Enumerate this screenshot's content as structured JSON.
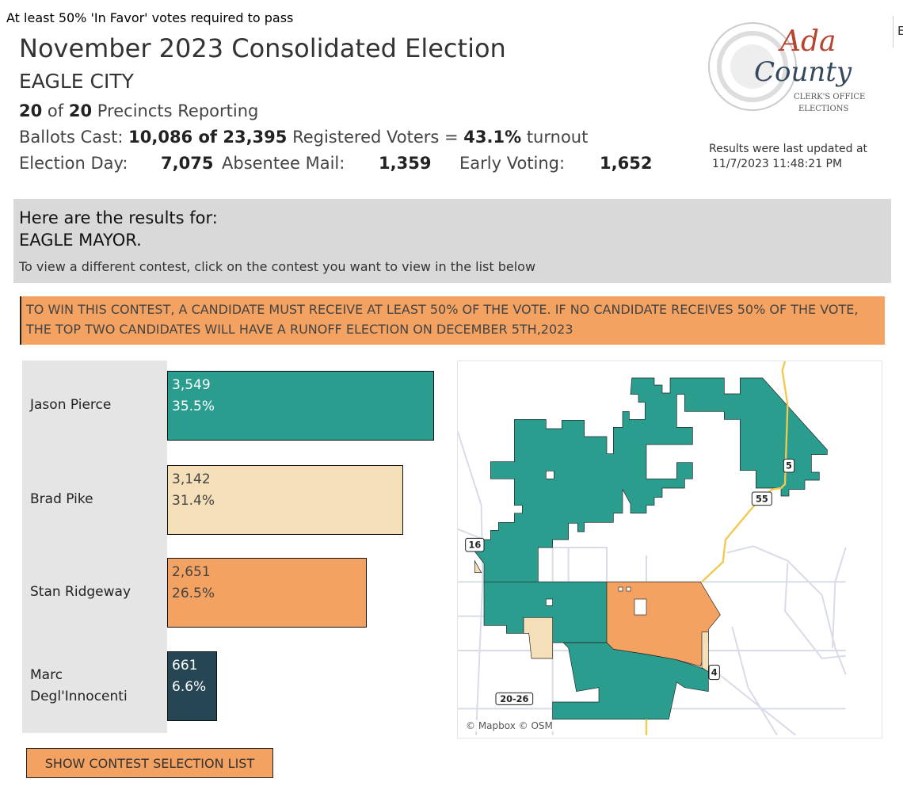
{
  "notice": "At least 50% 'In Favor' votes required to pass",
  "header": {
    "title": "November 2023 Consolidated Election",
    "jurisdiction": "EAGLE CITY",
    "precincts_reported": "20",
    "precincts_of": "of",
    "precincts_total": "20",
    "precincts_label": "Precincts Reporting",
    "ballots_label": "Ballots Cast:",
    "ballots_cast": "10,086 of 23,395",
    "registered_label": "Registered Voters =",
    "turnout": "43.1%",
    "turnout_label": "turnout",
    "election_day_label": "Election Day:",
    "election_day": "7,075",
    "absentee_label": "Absentee Mail:",
    "absentee": "1,359",
    "early_label": "Early Voting:",
    "early": "1,652"
  },
  "tab_fragment": "E",
  "logo": {
    "text_top": "Ada",
    "text_main": "County",
    "sub1": "Clerk's Office",
    "sub2": "ELECTIONS"
  },
  "updated": {
    "label": "Results were last updated at",
    "timestamp": "11/7/2023 11:48:21 PM"
  },
  "contest": {
    "intro": "Here are the results for:",
    "name": "EAGLE MAYOR.",
    "hint": "To view a different contest, click on the contest you want to view in the list below"
  },
  "rule_banner": "TO WIN THIS CONTEST, A CANDIDATE MUST RECEIVE AT LEAST 50% OF THE VOTE. IF NO CANDIDATE RECEIVES 50% OF THE VOTE, THE TOP TWO CANDIDATES WILL HAVE A RUNOFF ELECTION ON DECEMBER 5TH,2023",
  "chart_data": {
    "type": "bar",
    "orientation": "horizontal",
    "categories": [
      "Jason Pierce",
      "Brad Pike",
      "Stan Ridgeway",
      "Marc Degl'Innocenti"
    ],
    "values": [
      3549,
      3142,
      2651,
      661
    ],
    "value_labels": [
      "3,549",
      "3,142",
      "2,651",
      "661"
    ],
    "percent_labels": [
      "35.5%",
      "31.4%",
      "26.5%",
      "6.6%"
    ],
    "colors": [
      "#2a9d8f",
      "#f4dfb9",
      "#f4a261",
      "#264653"
    ],
    "text_colors": [
      "#ffffff",
      "#444444",
      "#444444",
      "#ffffff"
    ],
    "grid": false
  },
  "map": {
    "credit": "© Mapbox © OSM",
    "route_labels": [
      "55",
      "16",
      "5",
      "4",
      "20-26"
    ],
    "colors": {
      "teal": "#2a9d8f",
      "beige": "#f4dfb9",
      "orange": "#f4a261",
      "road": "#f2c94c",
      "street": "#d8dbe8"
    }
  },
  "button": {
    "label": "SHOW CONTEST SELECTION LIST"
  }
}
